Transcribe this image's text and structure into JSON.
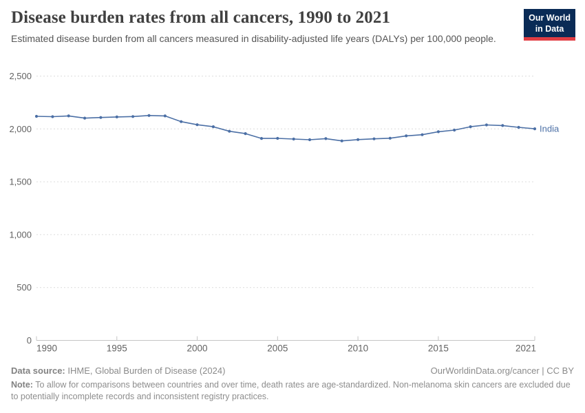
{
  "header": {
    "title": "Disease burden rates from all cancers, 1990 to 2021",
    "subtitle": "Estimated disease burden from all cancers measured in disability-adjusted life years (DALYs) per 100,000 people.",
    "logo": {
      "line1": "Our World",
      "line2": "in Data"
    }
  },
  "footer": {
    "data_source_label": "Data source:",
    "data_source": "IHME, Global Burden of Disease (2024)",
    "link": "OurWorldinData.org/cancer | CC BY",
    "note_label": "Note:",
    "note": "To allow for comparisons between countries and over time, death rates are age-standardized. Non-melanoma skin cancers are excluded due to potentially incomplete records and inconsistent registry practices."
  },
  "colors": {
    "line": "#4b6fa5",
    "entity_label": "#4b6fa5",
    "grid": "#dcdcdc",
    "axis": "#c4c4c4",
    "tick_label": "#626262",
    "title_text": "#404040",
    "logo_bg": "#0a2b56",
    "logo_stripe": "#e13d43"
  },
  "chart_data": {
    "type": "line",
    "title": "Disease burden rates from all cancers, 1990 to 2021",
    "xlabel": "",
    "ylabel": "",
    "x": [
      1990,
      1991,
      1992,
      1993,
      1994,
      1995,
      1996,
      1997,
      1998,
      1999,
      2000,
      2001,
      2002,
      2003,
      2004,
      2005,
      2006,
      2007,
      2008,
      2009,
      2010,
      2011,
      2012,
      2013,
      2014,
      2015,
      2016,
      2017,
      2018,
      2019,
      2020,
      2021
    ],
    "series": [
      {
        "name": "India",
        "values": [
          2119,
          2116,
          2123,
          2102,
          2108,
          2113,
          2117,
          2127,
          2123,
          2069,
          2040,
          2021,
          1978,
          1956,
          1910,
          1911,
          1904,
          1898,
          1908,
          1887,
          1899,
          1906,
          1912,
          1934,
          1945,
          1973,
          1989,
          2021,
          2038,
          2032,
          2015,
          2001
        ]
      }
    ],
    "x_ticks": [
      1990,
      1995,
      2000,
      2005,
      2010,
      2015,
      2021
    ],
    "y_ticks": [
      0,
      500,
      1000,
      1500,
      2000,
      2500
    ],
    "xlim": [
      1990,
      2021
    ],
    "ylim": [
      0,
      2500
    ],
    "grid": "horizontal-dashed",
    "legend": "entity-label-at-line-end",
    "markers": true
  }
}
